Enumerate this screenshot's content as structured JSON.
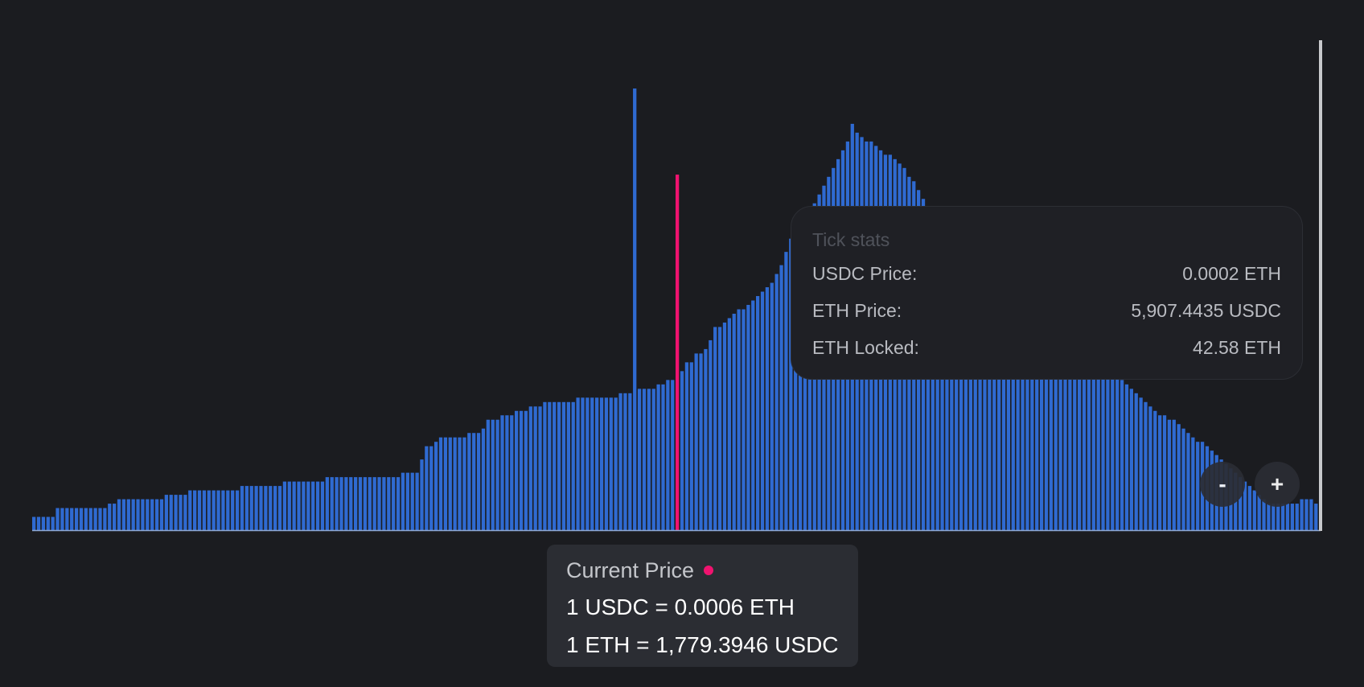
{
  "colors": {
    "background": "#1b1c20",
    "bar": "#2f6ad1",
    "current_price": "#f0136f",
    "axis": "#8fa9d6",
    "range_handle": "#c8c9cc"
  },
  "tick_stats": {
    "title": "Tick stats",
    "rows": [
      {
        "label": "USDC Price:",
        "value": "0.0002 ETH"
      },
      {
        "label": "ETH Price:",
        "value": "5,907.4435 USDC"
      },
      {
        "label": "ETH Locked:",
        "value": "42.58 ETH"
      }
    ]
  },
  "current_price": {
    "title": "Current Price",
    "line1": "1 USDC = 0.0006 ETH",
    "line2": "1 ETH = 1,779.3946 USDC"
  },
  "zoom": {
    "minus_label": "-",
    "plus_label": "+"
  },
  "chart_data": {
    "type": "bar",
    "title": "",
    "xlabel": "",
    "ylabel": "",
    "ylim": [
      0,
      100
    ],
    "grid": false,
    "current_price_index": 100,
    "values": [
      3,
      3,
      3,
      3,
      3,
      5,
      5,
      5,
      5,
      5,
      5,
      5,
      5,
      5,
      5,
      5,
      6,
      6,
      7,
      7,
      7,
      7,
      7,
      7,
      7,
      7,
      7,
      7,
      8,
      8,
      8,
      8,
      8,
      9,
      9,
      9,
      9,
      9,
      9,
      9,
      9,
      9,
      9,
      9,
      10,
      10,
      10,
      10,
      10,
      10,
      10,
      10,
      10,
      11,
      11,
      11,
      11,
      11,
      11,
      11,
      11,
      11,
      12,
      12,
      12,
      12,
      12,
      12,
      12,
      12,
      12,
      12,
      12,
      12,
      12,
      12,
      12,
      12,
      13,
      13,
      13,
      13,
      16,
      19,
      19,
      20,
      21,
      21,
      21,
      21,
      21,
      21,
      22,
      22,
      22,
      23,
      25,
      25,
      25,
      26,
      26,
      26,
      27,
      27,
      27,
      28,
      28,
      28,
      29,
      29,
      29,
      29,
      29,
      29,
      29,
      30,
      30,
      30,
      30,
      30,
      30,
      30,
      30,
      30,
      31,
      31,
      31,
      31,
      32,
      32,
      32,
      32,
      33,
      33,
      34,
      34,
      35,
      36,
      38,
      38,
      40,
      40,
      41,
      43,
      46,
      46,
      47,
      48,
      49,
      50,
      50,
      51,
      52,
      53,
      54,
      55,
      56,
      58,
      60,
      63,
      66,
      67,
      68,
      70,
      72,
      74,
      76,
      78,
      80,
      82,
      84,
      86,
      88,
      92,
      90,
      89,
      88,
      88,
      87,
      86,
      85,
      85,
      84,
      83,
      82,
      80,
      79,
      77,
      75,
      73,
      71,
      67,
      63,
      61,
      59,
      57,
      54,
      53,
      53,
      52,
      52,
      51,
      51,
      50,
      50,
      49,
      49,
      48,
      47,
      47,
      47,
      46,
      45,
      45,
      44,
      44,
      43,
      43,
      42,
      42,
      41,
      40,
      40,
      40,
      39,
      39,
      38,
      37,
      36,
      35,
      34,
      33,
      32,
      31,
      30,
      29,
      28,
      27,
      26,
      26,
      25,
      25,
      24,
      23,
      22,
      21,
      20,
      20,
      19,
      18,
      17,
      16,
      15,
      14,
      13,
      12,
      11,
      10,
      9,
      8,
      7,
      6,
      6,
      6,
      6,
      6,
      6,
      6,
      7,
      7,
      7,
      6
    ],
    "highlight_values": {
      "peak": 100,
      "current": 80.5
    }
  }
}
